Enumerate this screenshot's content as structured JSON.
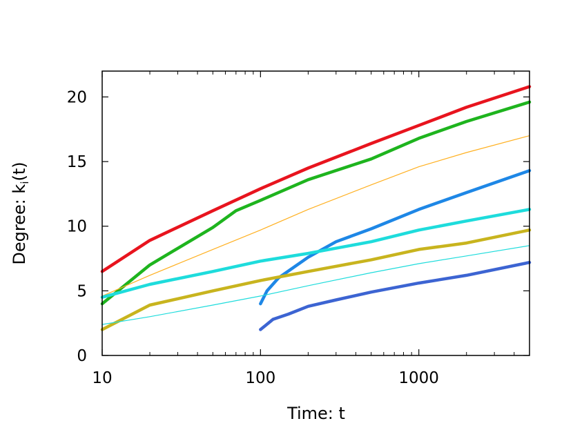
{
  "chart_data": {
    "type": "line",
    "title": "",
    "xlabel": "Time: t",
    "ylabel_main": "Degree: k",
    "ylabel_sub": "i",
    "ylabel_tail": "(t)",
    "xscale": "log",
    "xlim": [
      10,
      5000
    ],
    "ylim": [
      0,
      22
    ],
    "grid": false,
    "legend": "none",
    "x_ticks": [
      {
        "value": 10,
        "label": "10"
      },
      {
        "value": 100,
        "label": "100"
      },
      {
        "value": 1000,
        "label": "1000"
      }
    ],
    "y_ticks": [
      {
        "value": 0,
        "label": "0"
      },
      {
        "value": 5,
        "label": "5"
      },
      {
        "value": 10,
        "label": "10"
      },
      {
        "value": 15,
        "label": "15"
      },
      {
        "value": 20,
        "label": "20"
      }
    ],
    "series": [
      {
        "color": "#e8141e",
        "weight": "thick",
        "points": [
          [
            10,
            6.5
          ],
          [
            20,
            8.9
          ],
          [
            50,
            11.2
          ],
          [
            100,
            12.9
          ],
          [
            200,
            14.5
          ],
          [
            500,
            16.4
          ],
          [
            1000,
            17.8
          ],
          [
            2000,
            19.2
          ],
          [
            5000,
            20.8
          ]
        ]
      },
      {
        "color": "#1eb41e",
        "weight": "thick",
        "points": [
          [
            10,
            4.0
          ],
          [
            20,
            7.0
          ],
          [
            50,
            9.9
          ],
          [
            70,
            11.2
          ],
          [
            100,
            12.0
          ],
          [
            200,
            13.6
          ],
          [
            500,
            15.2
          ],
          [
            1000,
            16.8
          ],
          [
            2000,
            18.1
          ],
          [
            5000,
            19.6
          ]
        ]
      },
      {
        "color": "#ffb020",
        "weight": "thin",
        "points": [
          [
            10,
            4.6
          ],
          [
            20,
            6.2
          ],
          [
            50,
            8.2
          ],
          [
            100,
            9.7
          ],
          [
            200,
            11.3
          ],
          [
            500,
            13.2
          ],
          [
            1000,
            14.6
          ],
          [
            2000,
            15.7
          ],
          [
            5000,
            17.0
          ]
        ]
      },
      {
        "color": "#1e87e6",
        "weight": "thick",
        "points": [
          [
            100,
            4.0
          ],
          [
            110,
            5.0
          ],
          [
            130,
            6.0
          ],
          [
            200,
            7.6
          ],
          [
            300,
            8.8
          ],
          [
            500,
            9.8
          ],
          [
            1000,
            11.3
          ],
          [
            2000,
            12.6
          ],
          [
            5000,
            14.3
          ]
        ]
      },
      {
        "color": "#1edcdc",
        "weight": "thick",
        "points": [
          [
            10,
            4.5
          ],
          [
            20,
            5.5
          ],
          [
            50,
            6.5
          ],
          [
            100,
            7.3
          ],
          [
            200,
            7.9
          ],
          [
            500,
            8.8
          ],
          [
            1000,
            9.7
          ],
          [
            2000,
            10.4
          ],
          [
            5000,
            11.3
          ]
        ]
      },
      {
        "color": "#c8b41e",
        "weight": "thick",
        "points": [
          [
            10,
            2.0
          ],
          [
            20,
            3.9
          ],
          [
            50,
            5.0
          ],
          [
            100,
            5.8
          ],
          [
            200,
            6.5
          ],
          [
            500,
            7.4
          ],
          [
            1000,
            8.2
          ],
          [
            2000,
            8.7
          ],
          [
            5000,
            9.7
          ]
        ]
      },
      {
        "color": "#1edcdc",
        "weight": "thin",
        "points": [
          [
            10,
            2.4
          ],
          [
            20,
            3.0
          ],
          [
            50,
            3.9
          ],
          [
            100,
            4.6
          ],
          [
            200,
            5.4
          ],
          [
            500,
            6.4
          ],
          [
            1000,
            7.1
          ],
          [
            2000,
            7.7
          ],
          [
            5000,
            8.5
          ]
        ]
      },
      {
        "color": "#3c64d2",
        "weight": "thick",
        "points": [
          [
            100,
            2.0
          ],
          [
            120,
            2.8
          ],
          [
            150,
            3.2
          ],
          [
            200,
            3.8
          ],
          [
            300,
            4.3
          ],
          [
            500,
            4.9
          ],
          [
            1000,
            5.6
          ],
          [
            2000,
            6.2
          ],
          [
            5000,
            7.2
          ]
        ]
      }
    ]
  }
}
